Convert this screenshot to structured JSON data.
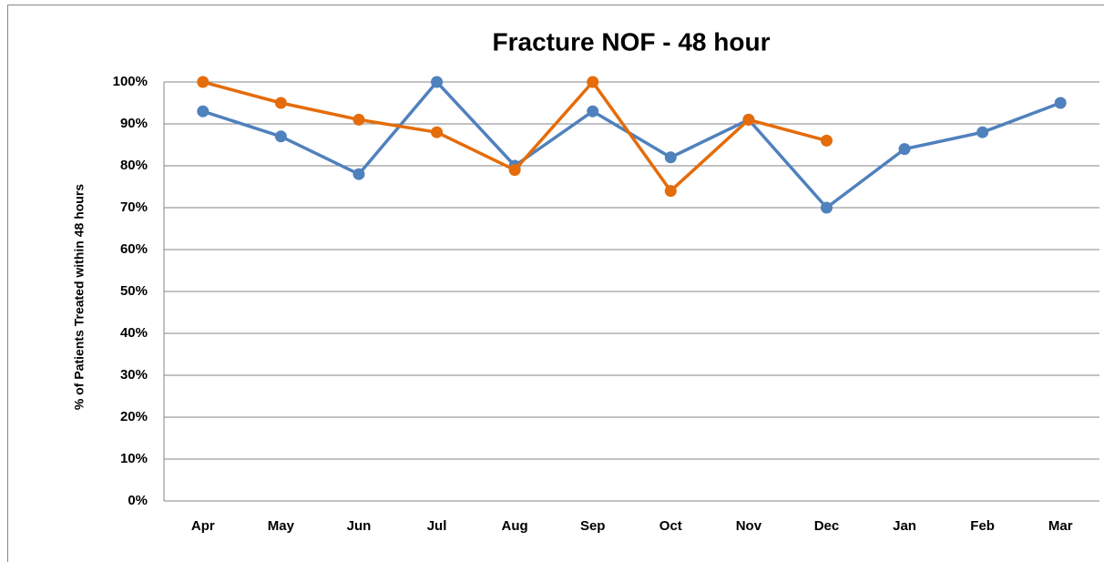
{
  "chart_data": {
    "type": "line",
    "title": "Fracture NOF - 48 hour",
    "y_label": "% of Patients Treated within 48 hours",
    "categories": [
      "Apr",
      "May",
      "Jun",
      "Jul",
      "Aug",
      "Sep",
      "Oct",
      "Nov",
      "Dec",
      "Jan",
      "Feb",
      "Mar"
    ],
    "series": [
      {
        "color": "#4f81bd",
        "values": [
          93,
          87,
          78,
          100,
          80,
          93,
          82,
          91,
          70,
          84,
          88,
          95
        ]
      },
      {
        "color": "#e46c0a",
        "values": [
          100,
          95,
          91,
          88,
          79,
          100,
          74,
          91,
          86,
          null,
          null,
          null
        ]
      }
    ],
    "ylim": [
      0,
      100
    ],
    "yticks": [
      {
        "value": 0,
        "label": "0%"
      },
      {
        "value": 10,
        "label": "10%"
      },
      {
        "value": 20,
        "label": "20%"
      },
      {
        "value": 30,
        "label": "30%"
      },
      {
        "value": 40,
        "label": "40%"
      },
      {
        "value": 50,
        "label": "50%"
      },
      {
        "value": 60,
        "label": "60%"
      },
      {
        "value": 70,
        "label": "70%"
      },
      {
        "value": 80,
        "label": "80%"
      },
      {
        "value": 90,
        "label": "90%"
      },
      {
        "value": 100,
        "label": "100%"
      }
    ],
    "grid": true
  }
}
